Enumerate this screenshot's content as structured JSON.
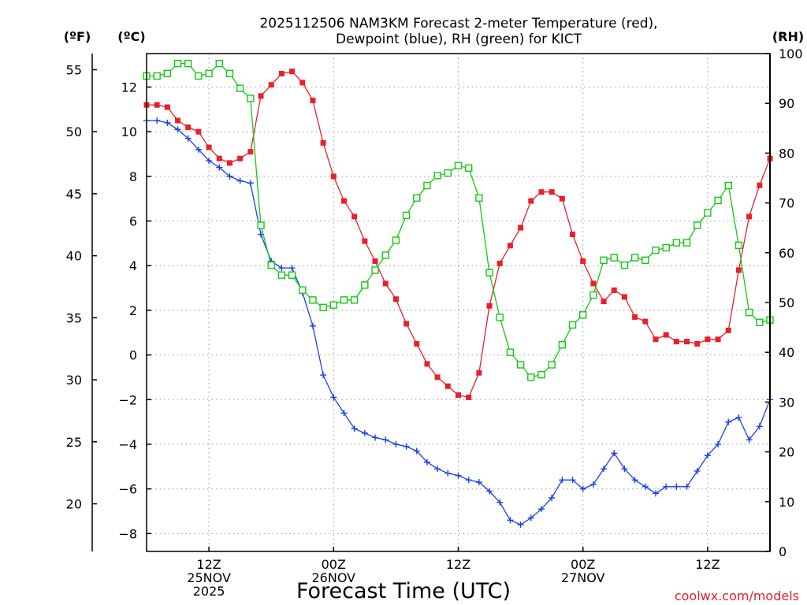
{
  "title": {
    "line1": "2025112506 NAM3KM Forecast 2-meter Temperature (red),",
    "line2": "Dewpoint (blue), RH (green) for KICT"
  },
  "units": {
    "fahrenheit": "(ºF)",
    "celsius": "(ºC)",
    "rh": "(RH)"
  },
  "credit": "coolwx.com/models",
  "colors": {
    "temperature": "#e8202a",
    "dewpoint": "#1c3fe8",
    "rh": "#14c814",
    "grid": "#9a9a9a",
    "axis": "#000000"
  },
  "chart_data": {
    "type": "line",
    "xlabel": "Forecast Time (UTC)",
    "x_range_hours": [
      0,
      60
    ],
    "x_ticks": [
      {
        "hour": 6,
        "lines": [
          "12Z",
          "25NOV",
          "2025"
        ]
      },
      {
        "hour": 18,
        "lines": [
          "00Z",
          "26NOV"
        ]
      },
      {
        "hour": 30,
        "lines": [
          "12Z"
        ]
      },
      {
        "hour": 42,
        "lines": [
          "00Z",
          "27NOV"
        ]
      },
      {
        "hour": 54,
        "lines": [
          "12Z"
        ]
      }
    ],
    "left_axis_c": {
      "range": [
        -8.8,
        13.5
      ],
      "ticks": [
        "12",
        "10",
        "8",
        "6",
        "4",
        "2",
        "0",
        "−2",
        "−4",
        "−6",
        "−8"
      ]
    },
    "left_axis_f": {
      "range": [
        16.16,
        56.3
      ],
      "ticks": [
        "55",
        "50",
        "45",
        "40",
        "35",
        "30",
        "25",
        "20"
      ]
    },
    "right_axis_rh": {
      "range": [
        0,
        100
      ],
      "ticks": [
        "100",
        "90",
        "80",
        "70",
        "60",
        "50",
        "40",
        "30",
        "20",
        "10",
        "0"
      ]
    },
    "series": [
      {
        "name": "2-meter Temperature",
        "unit": "C",
        "marker": "filled-square",
        "values": [
          11.2,
          11.2,
          11.1,
          10.5,
          10.2,
          10.0,
          9.3,
          8.8,
          8.6,
          8.8,
          9.1,
          11.6,
          12.1,
          12.6,
          12.7,
          12.2,
          11.4,
          9.5,
          8.0,
          6.9,
          6.2,
          5.1,
          4.2,
          3.2,
          2.5,
          1.4,
          0.5,
          -0.4,
          -1.0,
          -1.4,
          -1.8,
          -1.9,
          -0.8,
          2.2,
          4.1,
          4.9,
          5.7,
          6.9,
          7.3,
          7.3,
          7.0,
          5.4,
          4.2,
          3.2,
          2.4,
          2.9,
          2.6,
          1.7,
          1.5,
          0.7,
          0.9,
          0.6,
          0.6,
          0.5,
          0.7,
          0.7,
          1.1,
          3.8,
          6.2,
          7.6,
          8.8
        ]
      },
      {
        "name": "Dewpoint",
        "unit": "C",
        "marker": "plus",
        "values": [
          10.5,
          10.5,
          10.4,
          10.1,
          9.7,
          9.2,
          8.7,
          8.4,
          8.0,
          7.8,
          7.7,
          5.4,
          4.2,
          3.9,
          3.9,
          2.8,
          1.3,
          -0.9,
          -1.9,
          -2.6,
          -3.3,
          -3.5,
          -3.7,
          -3.8,
          -4.0,
          -4.1,
          -4.3,
          -4.8,
          -5.1,
          -5.3,
          -5.4,
          -5.6,
          -5.7,
          -6.1,
          -6.6,
          -7.4,
          -7.6,
          -7.3,
          -6.9,
          -6.4,
          -5.6,
          -5.6,
          -6.0,
          -5.8,
          -5.1,
          -4.4,
          -5.1,
          -5.6,
          -5.9,
          -6.2,
          -5.9,
          -5.9,
          -5.9,
          -5.2,
          -4.5,
          -4.0,
          -3.0,
          -2.8,
          -3.8,
          -3.2,
          -2.0
        ]
      },
      {
        "name": "RH",
        "unit": "%",
        "marker": "open-square",
        "values": [
          95.5,
          95.5,
          96,
          98,
          98,
          95.5,
          96,
          98,
          96,
          93,
          91,
          65.5,
          57.5,
          55.5,
          55.5,
          52.5,
          50.5,
          49,
          49.5,
          50.5,
          50.5,
          53.5,
          56.5,
          59.5,
          62.5,
          67.5,
          71,
          73.5,
          75.5,
          76,
          77.5,
          77,
          71,
          56,
          47,
          40,
          37.5,
          35,
          35.5,
          37.5,
          41.5,
          45.5,
          47.5,
          51.5,
          58.5,
          59,
          57.5,
          59,
          58.5,
          60.5,
          61,
          62,
          62,
          65.5,
          68,
          70.5,
          73.5,
          61.5,
          48,
          46,
          46.5
        ]
      }
    ]
  }
}
